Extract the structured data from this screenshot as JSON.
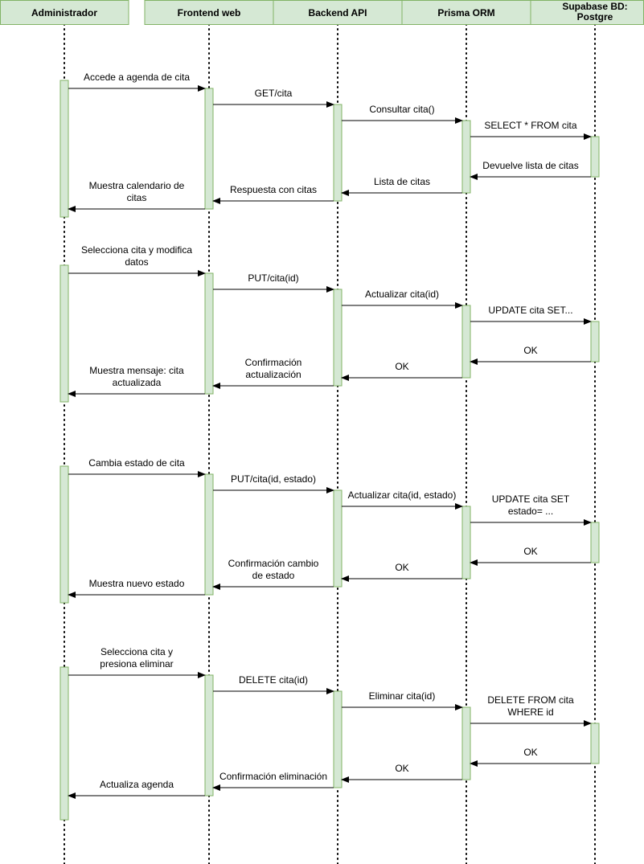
{
  "colors": {
    "participant_fill": "#d5e8d4",
    "participant_stroke": "#82b366",
    "lifeline": "#000000",
    "arrow": "#000000"
  },
  "participants": [
    {
      "id": "admin",
      "lines": [
        "Administrador"
      ]
    },
    {
      "id": "frontend",
      "lines": [
        "Frontend web"
      ]
    },
    {
      "id": "backend",
      "lines": [
        "Backend API"
      ]
    },
    {
      "id": "prisma",
      "lines": [
        "Prisma ORM"
      ]
    },
    {
      "id": "supabase",
      "lines": [
        "Supabase BD:",
        "Postgre"
      ]
    }
  ],
  "messages": [
    {
      "from": "admin",
      "to": "frontend",
      "lines": [
        "Accede a agenda de cita"
      ]
    },
    {
      "from": "frontend",
      "to": "backend",
      "lines": [
        "GET/cita"
      ]
    },
    {
      "from": "backend",
      "to": "prisma",
      "lines": [
        "Consultar cita()"
      ]
    },
    {
      "from": "prisma",
      "to": "supabase",
      "lines": [
        "SELECT * FROM cita"
      ]
    },
    {
      "from": "supabase",
      "to": "prisma",
      "lines": [
        "Devuelve lista de citas"
      ]
    },
    {
      "from": "prisma",
      "to": "backend",
      "lines": [
        "Lista de citas"
      ]
    },
    {
      "from": "backend",
      "to": "frontend",
      "lines": [
        "Respuesta con citas"
      ]
    },
    {
      "from": "frontend",
      "to": "admin",
      "lines": [
        "Muestra calendario de",
        "citas"
      ]
    },
    {
      "from": "admin",
      "to": "frontend",
      "lines": [
        "Selecciona cita y modifica",
        "datos"
      ]
    },
    {
      "from": "frontend",
      "to": "backend",
      "lines": [
        "PUT/cita(id)"
      ]
    },
    {
      "from": "backend",
      "to": "prisma",
      "lines": [
        "Actualizar cita(id)"
      ]
    },
    {
      "from": "prisma",
      "to": "supabase",
      "lines": [
        "UPDATE cita SET..."
      ]
    },
    {
      "from": "supabase",
      "to": "prisma",
      "lines": [
        "OK"
      ]
    },
    {
      "from": "prisma",
      "to": "backend",
      "lines": [
        "OK"
      ]
    },
    {
      "from": "backend",
      "to": "frontend",
      "lines": [
        "Confirmación",
        "actualización"
      ]
    },
    {
      "from": "frontend",
      "to": "admin",
      "lines": [
        "Muestra mensaje: cita",
        "actualizada"
      ]
    },
    {
      "from": "admin",
      "to": "frontend",
      "lines": [
        "Cambia estado de cita"
      ]
    },
    {
      "from": "frontend",
      "to": "backend",
      "lines": [
        "PUT/cita(id, estado)"
      ]
    },
    {
      "from": "backend",
      "to": "prisma",
      "lines": [
        "Actualizar cita(id, estado)"
      ]
    },
    {
      "from": "prisma",
      "to": "supabase",
      "lines": [
        "UPDATE cita SET",
        "estado= ..."
      ]
    },
    {
      "from": "supabase",
      "to": "prisma",
      "lines": [
        "OK"
      ]
    },
    {
      "from": "prisma",
      "to": "backend",
      "lines": [
        "OK"
      ]
    },
    {
      "from": "backend",
      "to": "frontend",
      "lines": [
        "Confirmación cambio",
        "de estado"
      ]
    },
    {
      "from": "frontend",
      "to": "admin",
      "lines": [
        "Muestra nuevo estado"
      ]
    },
    {
      "from": "admin",
      "to": "frontend",
      "lines": [
        "Selecciona cita y",
        "presiona eliminar"
      ]
    },
    {
      "from": "frontend",
      "to": "backend",
      "lines": [
        "DELETE cita(id)"
      ]
    },
    {
      "from": "backend",
      "to": "prisma",
      "lines": [
        "Eliminar cita(id)"
      ]
    },
    {
      "from": "prisma",
      "to": "supabase",
      "lines": [
        "DELETE FROM cita",
        "WHERE id"
      ]
    },
    {
      "from": "supabase",
      "to": "prisma",
      "lines": [
        "OK"
      ]
    },
    {
      "from": "prisma",
      "to": "backend",
      "lines": [
        "OK"
      ]
    },
    {
      "from": "backend",
      "to": "frontend",
      "lines": [
        "Confirmación eliminación"
      ]
    },
    {
      "from": "frontend",
      "to": "admin",
      "lines": [
        "Actualiza agenda"
      ]
    }
  ]
}
